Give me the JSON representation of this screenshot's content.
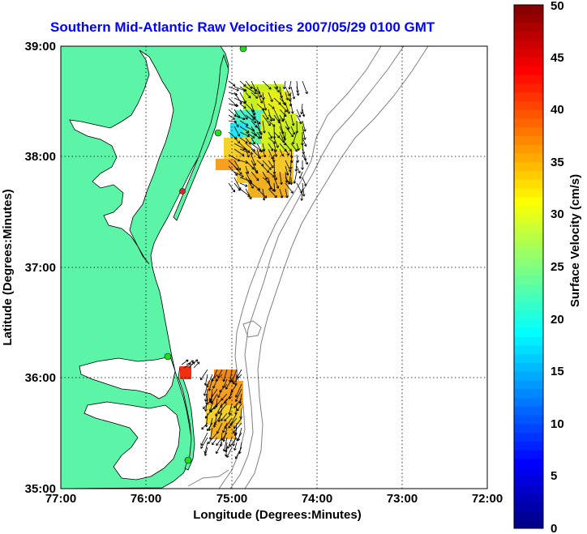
{
  "title": "Southern Mid-Atlantic Raw Velocities 2007/05/29 0100 GMT",
  "map": {
    "xlabel": "Longitude (Degrees:Minutes)",
    "ylabel": "Latitude (Degrees:Minutes)",
    "lon_range": [
      -77.0,
      -72.0
    ],
    "lat_range": [
      35.0,
      39.0
    ],
    "x_ticks": [
      "77:00",
      "76:00",
      "75:00",
      "74:00",
      "73:00",
      "72:00"
    ],
    "y_ticks": [
      "35:00",
      "36:00",
      "37:00",
      "38:00",
      "39:00"
    ],
    "grid": "dotted",
    "land_color": "#5cf5a8",
    "coast_color": "#000000",
    "isobath_color": "#808080",
    "arrow_color": "#000000",
    "station_marker_color": "#22dd22",
    "station_marker_alt_color": "#ee2222"
  },
  "colorbar": {
    "label": "Surface Velocity (cm/s)",
    "min": 0,
    "max": 50,
    "ticks": [
      "0",
      "5",
      "10",
      "15",
      "20",
      "25",
      "30",
      "35",
      "40",
      "45",
      "50"
    ],
    "colormap": "jet",
    "placement": "right"
  }
}
